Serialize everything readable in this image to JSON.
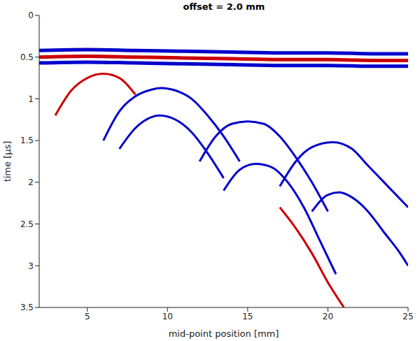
{
  "chart_data": {
    "type": "line",
    "title": "offset = 2.0 mm",
    "x_label": "mid-point position [mm]",
    "y_label": "time [μs]",
    "xlim": [
      2,
      25
    ],
    "ylim": [
      0,
      3.5
    ],
    "xticks": [
      5,
      10,
      15,
      20,
      25
    ],
    "yticks": [
      0,
      0.5,
      1,
      1.5,
      2,
      2.5,
      3,
      3.5
    ],
    "series": [
      {
        "color": "#0000cc",
        "x": [
          2,
          5,
          8,
          11,
          14,
          17,
          20,
          23,
          25
        ],
        "values": [
          0.42,
          0.41,
          0.42,
          0.43,
          0.44,
          0.45,
          0.45,
          0.46,
          0.46
        ]
      },
      {
        "color": "#cc0000",
        "x": [
          2,
          5,
          8,
          11,
          14,
          17,
          20,
          23,
          25
        ],
        "values": [
          0.5,
          0.49,
          0.5,
          0.51,
          0.52,
          0.53,
          0.53,
          0.54,
          0.54
        ]
      },
      {
        "color": "#0000cc",
        "x": [
          2,
          5,
          8,
          11,
          14,
          17,
          20,
          23,
          25
        ],
        "values": [
          0.57,
          0.56,
          0.57,
          0.58,
          0.59,
          0.6,
          0.6,
          0.61,
          0.61
        ]
      },
      {
        "color": "#cc0000",
        "x": [
          3,
          4,
          5,
          6,
          7,
          8
        ],
        "values": [
          1.2,
          0.9,
          0.75,
          0.7,
          0.75,
          0.95
        ]
      },
      {
        "color": "#0000cc",
        "x": [
          6,
          7,
          8,
          9,
          9.6,
          10.5,
          11.5,
          12.5,
          13.5,
          14.5
        ],
        "values": [
          1.5,
          1.15,
          0.97,
          0.89,
          0.87,
          0.9,
          1.0,
          1.2,
          1.45,
          1.75
        ]
      },
      {
        "color": "#0000cc",
        "x": [
          7,
          8,
          9,
          9.5,
          10.5,
          11.5,
          12.5,
          13.5
        ],
        "values": [
          1.6,
          1.35,
          1.22,
          1.2,
          1.25,
          1.4,
          1.65,
          1.95
        ]
      },
      {
        "color": "#0000cc",
        "x": [
          12,
          13,
          14,
          15,
          16,
          17,
          18,
          19,
          20
        ],
        "values": [
          1.75,
          1.45,
          1.3,
          1.27,
          1.3,
          1.45,
          1.7,
          2.0,
          2.35
        ]
      },
      {
        "color": "#0000cc",
        "x": [
          17,
          18,
          19,
          20.3,
          21.5,
          22.5,
          23.5,
          24.5,
          25
        ],
        "values": [
          2.05,
          1.75,
          1.58,
          1.52,
          1.6,
          1.8,
          2.0,
          2.2,
          2.3
        ]
      },
      {
        "color": "#0000cc",
        "x": [
          13.5,
          14.5,
          15.5,
          16.5,
          17.5,
          18.5,
          19.5,
          20.5
        ],
        "values": [
          2.1,
          1.85,
          1.78,
          1.82,
          2.0,
          2.3,
          2.7,
          3.1
        ]
      },
      {
        "color": "#0000cc",
        "x": [
          19,
          20,
          20.7,
          21.5,
          22.5,
          23.5,
          24.5,
          25
        ],
        "values": [
          2.35,
          2.15,
          2.12,
          2.18,
          2.35,
          2.6,
          2.85,
          3.0
        ]
      },
      {
        "color": "#cc0000",
        "x": [
          17,
          18,
          19,
          20,
          21
        ],
        "values": [
          2.3,
          2.55,
          2.85,
          3.2,
          3.5
        ]
      }
    ]
  }
}
